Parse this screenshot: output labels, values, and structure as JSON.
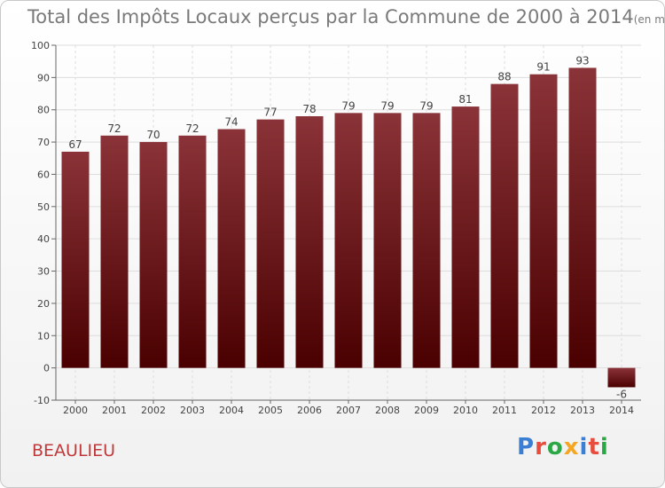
{
  "title": "Total des Impôts Locaux perçus par la Commune de 2000 à 2014",
  "unit": "(en milliers d'€)",
  "commune": "BEAULIEU",
  "logo": {
    "text": "Proxiti",
    "colors": [
      "#3b7fd4",
      "#e84c3d",
      "#2aa845",
      "#f5a623",
      "#3b7fd4",
      "#e84c3d",
      "#2aa845"
    ]
  },
  "colors": {
    "bar_top": "#8a3338",
    "bar_bottom": "#4a0000",
    "grid": "#dddddd"
  },
  "chart_data": {
    "type": "bar",
    "categories": [
      "2000",
      "2001",
      "2002",
      "2003",
      "2004",
      "2005",
      "2006",
      "2007",
      "2008",
      "2009",
      "2010",
      "2011",
      "2012",
      "2013",
      "2014"
    ],
    "values": [
      67,
      72,
      70,
      72,
      74,
      77,
      78,
      79,
      79,
      79,
      81,
      88,
      91,
      93,
      -6
    ],
    "ylim": [
      -10,
      100
    ],
    "yticks": [
      -10,
      0,
      10,
      20,
      30,
      40,
      50,
      60,
      70,
      80,
      90,
      100
    ],
    "grid": true
  }
}
